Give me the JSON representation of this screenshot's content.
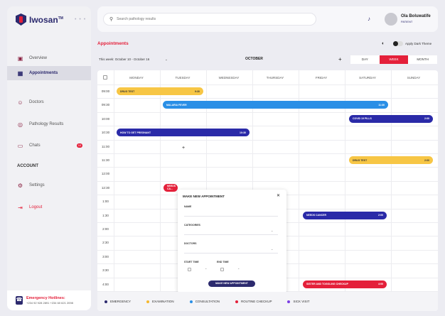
{
  "brand": {
    "name": "Iwosan",
    "tm": "TM",
    "collapse": "• • •"
  },
  "sidebar": {
    "items": [
      {
        "label": "Overview",
        "icon": "overview-icon",
        "glyph": "▣"
      },
      {
        "label": "Appointments",
        "icon": "calendar-icon",
        "glyph": "▦"
      },
      {
        "label": "Doctors",
        "icon": "doctor-icon",
        "glyph": "☺"
      },
      {
        "label": "Pathology Results",
        "icon": "results-icon",
        "glyph": "◎"
      },
      {
        "label": "Chats",
        "icon": "chat-icon",
        "glyph": "▭",
        "badge": "10"
      }
    ],
    "account_heading": "ACCOUNT",
    "settings": {
      "label": "Settings",
      "glyph": "⚙"
    },
    "logout": {
      "label": "Logout",
      "glyph": "⇥"
    },
    "emergency": {
      "title": "Emergency Hotlines:",
      "numbers": "+234 92 928 2891  +234 60 621 2098",
      "glyph": "☎"
    }
  },
  "header": {
    "search_placeholder": "Search pathology results",
    "search_glyph": "⚲",
    "bell_glyph": "♪",
    "user": {
      "name": "Ola Boluwatife",
      "role": "PATIENT"
    }
  },
  "appointments": {
    "title": "Appointments",
    "dark_theme_label": "Apply Dark Theme",
    "moon_glyph": "◐",
    "week_range": "This week: October 10 - October 16",
    "caret": "⌄",
    "month": "OCTOBER",
    "add_glyph": "+",
    "views": [
      "DAY",
      "WEEK",
      "MONTH"
    ],
    "active_view": "WEEK",
    "days": [
      "MONDAY",
      "TUESDAY",
      "WEDNESDAY",
      "THURSDAY",
      "FRIDAY",
      "SATURDAY",
      "SUNDAY"
    ],
    "times": [
      "09:00",
      "09:30",
      "10:00",
      "10:30",
      "11:00",
      "11:30",
      "12:00",
      "12:30",
      "1:00",
      "1:30",
      "2:00",
      "2:30",
      "3:00",
      "3:30",
      "4:00"
    ],
    "events": [
      {
        "title": "DRUG TEST",
        "time": "9:30",
        "day": "MONDAY",
        "start": "09:00",
        "category": "examination"
      },
      {
        "title": "MALARIA FEVER",
        "time": "11:30",
        "day": "TUESDAY",
        "start": "09:30",
        "category": "consultation"
      },
      {
        "title": "COVID 19 PILLS",
        "time": "2:00",
        "day": "SATURDAY",
        "start": "10:00",
        "category": "emergency"
      },
      {
        "title": "HOW TO GET PREGNANT",
        "time": "10:30",
        "day": "MONDAY",
        "start": "10:30",
        "category": "emergency"
      },
      {
        "title": "DRUG TEST",
        "time": "2:00",
        "day": "SATURDAY",
        "start": "11:30",
        "category": "examination"
      },
      {
        "title": "NEEDS CA...",
        "time": "",
        "day": "TUESDAY",
        "start": "12:30",
        "category": "routine"
      },
      {
        "title": "NEEDS CANCER",
        "time": "2:00",
        "day": "FRIDAY",
        "start": "1:30",
        "category": "emergency"
      },
      {
        "title": "SISTER AND TOGGLING CHECKUP",
        "time": "4:00",
        "day": "FRIDAY",
        "start": "4:00",
        "category": "routine"
      }
    ],
    "cell_plus": "+"
  },
  "modal": {
    "title": "MAKE NEW APPOINTMENT",
    "close": "✕",
    "name_label": "NAME",
    "categories_label": "CATEGORIES",
    "doctors_label": "DOCTORS",
    "start_label": "START TIME",
    "end_label": "END TIME",
    "caret": "⌄",
    "submit": "MAKE NEW APPOINTMENT"
  },
  "legend": [
    {
      "label": "EMERGENCY",
      "color": "#2c2a6e"
    },
    {
      "label": "EXAMINATION",
      "color": "#f5b82e"
    },
    {
      "label": "CONSULTATION",
      "color": "#2a8fe6"
    },
    {
      "label": "ROUTINE CHECKUP",
      "color": "#e4203a"
    },
    {
      "label": "SICK VISIT",
      "color": "#7b3fe4"
    }
  ],
  "category_colors": {
    "emergency": "#2a2aa8",
    "examination": "#f7c645",
    "consultation": "#2a8fe6",
    "routine": "#e4203a",
    "sick": "#7b3fe4"
  }
}
